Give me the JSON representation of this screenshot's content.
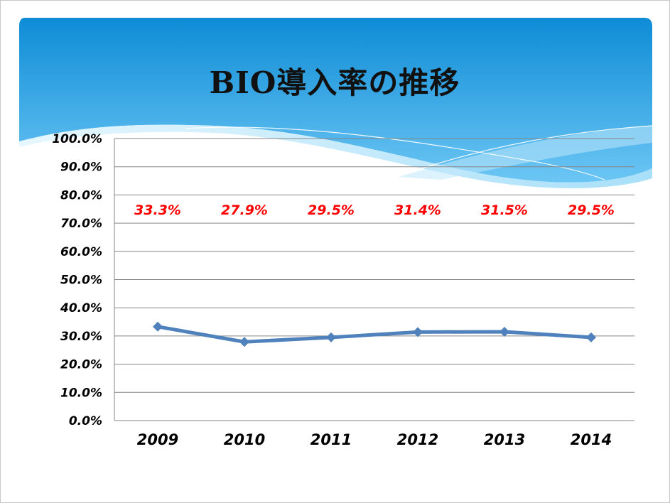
{
  "slide": {
    "title": "BIO導入率の推移",
    "colors": {
      "header_top": "#0f8fd8",
      "header_bottom": "#5fbff2",
      "wave_light": "#cfeefc",
      "line": "#4f81bd",
      "data_label": "#ff0000",
      "grid": "#868686"
    }
  },
  "chart_data": {
    "type": "line",
    "title": "BIO導入率の推移",
    "xlabel": "",
    "ylabel": "",
    "categories": [
      "2009",
      "2010",
      "2011",
      "2012",
      "2013",
      "2014"
    ],
    "series": [
      {
        "values": [
          33.3,
          27.9,
          29.5,
          31.4,
          31.5,
          29.5
        ],
        "labels": [
          "33.3%",
          "27.9%",
          "29.5%",
          "31.4%",
          "31.5%",
          "29.5%"
        ],
        "marker": "diamond"
      }
    ],
    "ylim": [
      0,
      100
    ],
    "yticks": [
      "0.0%",
      "10.0%",
      "20.0%",
      "30.0%",
      "40.0%",
      "50.0%",
      "60.0%",
      "70.0%",
      "80.0%",
      "90.0%",
      "100.0%"
    ],
    "grid": true,
    "legend": "none"
  }
}
